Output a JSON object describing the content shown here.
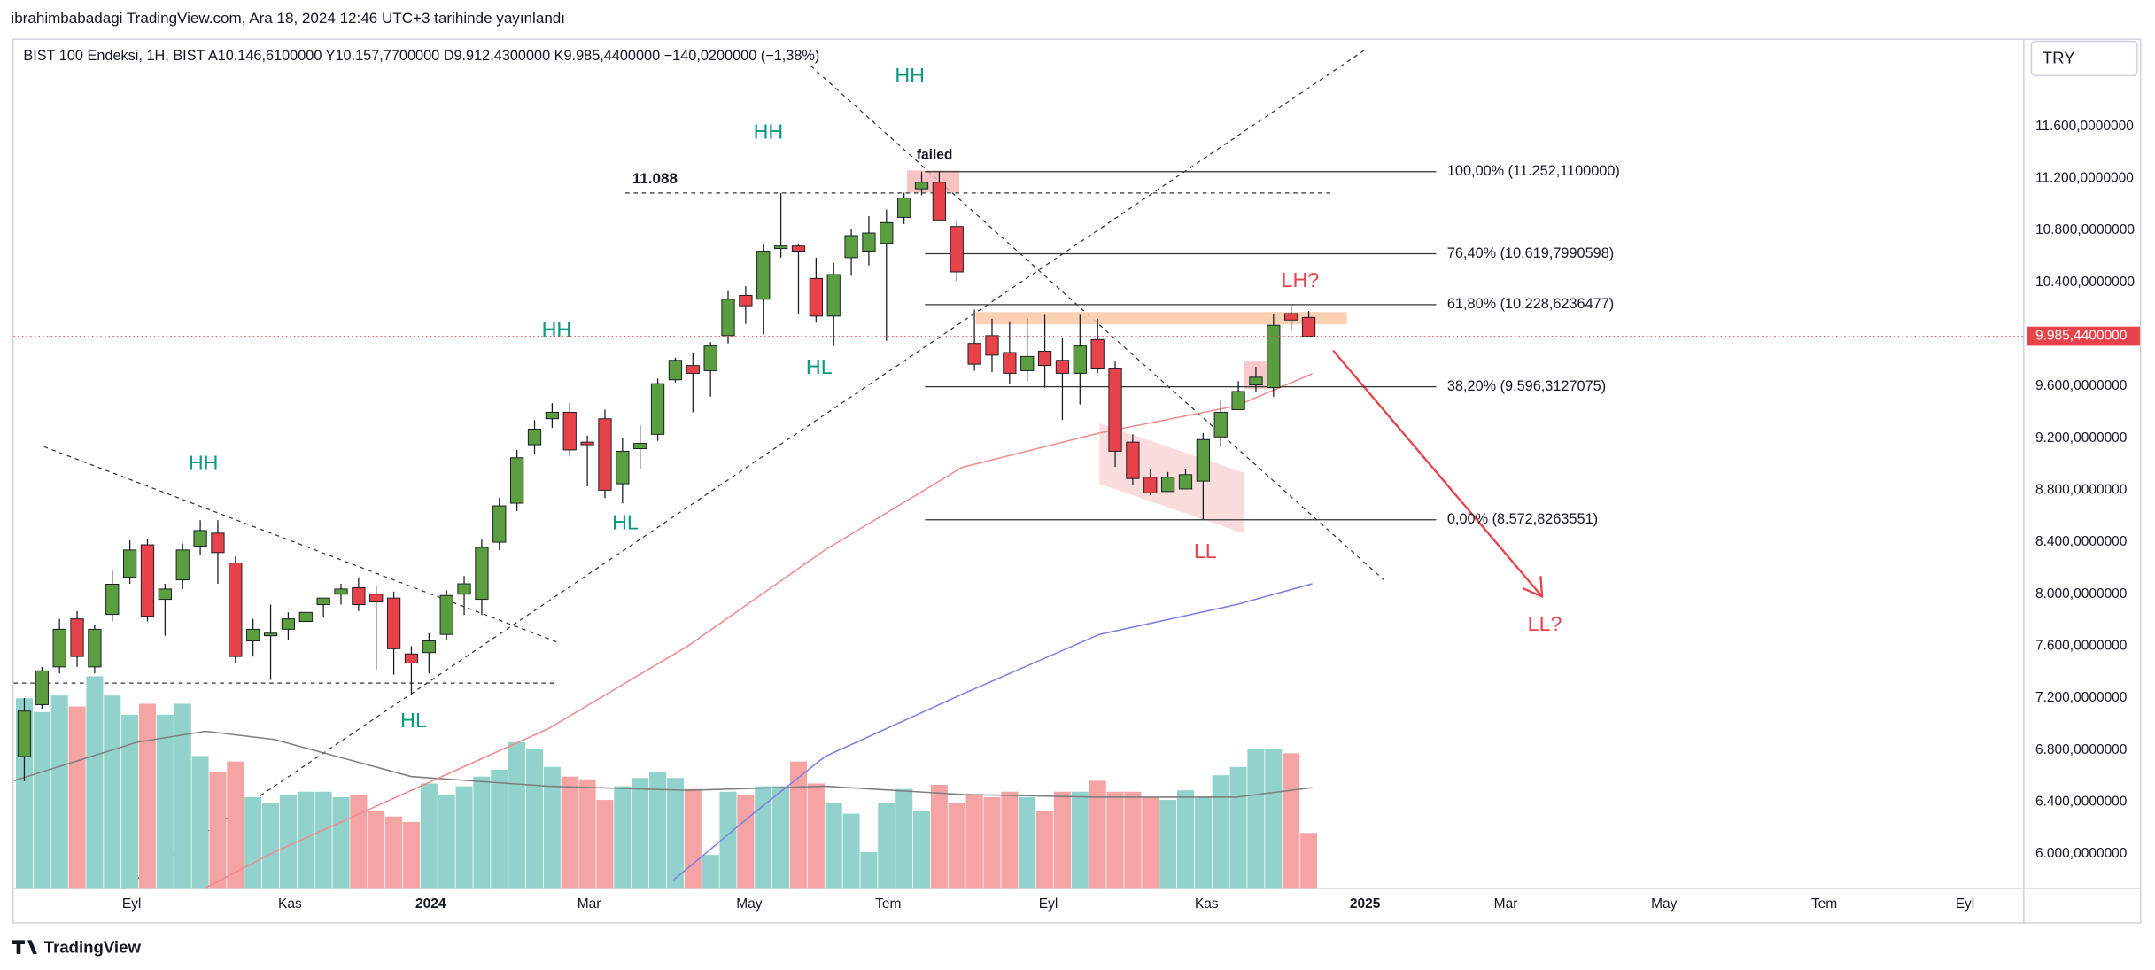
{
  "chart_data": {
    "type": "candlestick",
    "header": "ibrahimbabadagi TradingView.com, Ara 18, 2024 12:46 UTC+3 tarihinde yayınlandı",
    "legend": "BIST 100 Endeksi, 1H, BIST  A10.146,6100000  Y10.157,7700000  D9.912,4300000  K9.985,4400000  −140,0200000 (−1,38%)",
    "currency": "TRY",
    "footer": "TradingView",
    "up_color": "#5a9e3f",
    "down_color": "#e8434a",
    "volume_up_color": "#92d2cc",
    "volume_down_color": "#f5a3a3",
    "last_price": {
      "value": 9985.44,
      "label": "9.985,4400000"
    },
    "ylim": [
      5739,
      12277
    ],
    "yticks": [
      {
        "value": 6000,
        "label": "6.000,0000000"
      },
      {
        "value": 6400,
        "label": "6.400,0000000"
      },
      {
        "value": 6800,
        "label": "6.800,0000000"
      },
      {
        "value": 7200,
        "label": "7.200,0000000"
      },
      {
        "value": 7600,
        "label": "7.600,0000000"
      },
      {
        "value": 8000,
        "label": "8.000,0000000"
      },
      {
        "value": 8400,
        "label": "8.400,0000000"
      },
      {
        "value": 8800,
        "label": "8.800,0000000"
      },
      {
        "value": 9200,
        "label": "9.200,0000000"
      },
      {
        "value": 9600,
        "label": "9.600,0000000"
      },
      {
        "value": 10400,
        "label": "10.400,0000000"
      },
      {
        "value": 10800,
        "label": "10.800,0000000"
      },
      {
        "value": 11200,
        "label": "11.200,0000000"
      },
      {
        "value": 11600,
        "label": "11.600,0000000"
      }
    ],
    "xlim": [
      -0.6,
      113.6
    ],
    "xticks": [
      {
        "value": 6.1,
        "label": "Eyl"
      },
      {
        "value": 15.1,
        "label": "Kas"
      },
      {
        "value": 23.1,
        "label": "2024"
      },
      {
        "value": 32.1,
        "label": "Mar"
      },
      {
        "value": 41.2,
        "label": "May"
      },
      {
        "value": 49.1,
        "label": "Tem"
      },
      {
        "value": 58.2,
        "label": "Eyl"
      },
      {
        "value": 67.2,
        "label": "Kas"
      },
      {
        "value": 76.2,
        "label": "2025"
      },
      {
        "value": 84.2,
        "label": "Mar"
      },
      {
        "value": 93.2,
        "label": "May"
      },
      {
        "value": 102.3,
        "label": "Tem"
      },
      {
        "value": 110.3,
        "label": "Eyl"
      }
    ],
    "open": [
      6750,
      7150,
      7440,
      7810,
      7440,
      7844,
      8130,
      8380,
      7960,
      8110,
      8370,
      8470,
      8240,
      7640,
      7680,
      7730,
      7790,
      7920,
      8000,
      8050,
      8000,
      7970,
      7540,
      7550,
      7690,
      8000,
      7960,
      8400,
      8700,
      9150,
      9350,
      9400,
      9170,
      9350,
      8850,
      9120,
      9230,
      9650,
      9760,
      9720,
      9990,
      10300,
      10270,
      10660,
      10680,
      10430,
      10140,
      10590,
      10640,
      10700,
      10900,
      11120,
      11170,
      10830,
      9930,
      9990,
      9860,
      9720,
      9870,
      9800,
      9700,
      9960,
      9740,
      9170,
      8900,
      8790,
      8810,
      8870,
      9210,
      9420,
      9610,
      9590,
      10160,
      10130
    ],
    "high": [
      7200,
      7440,
      7810,
      7870,
      7760,
      8180,
      8415,
      8425,
      8080,
      8390,
      8570,
      8570,
      8290,
      7810,
      7920,
      7860,
      7860,
      7970,
      8080,
      8130,
      8060,
      8020,
      7600,
      7700,
      8030,
      8140,
      8420,
      8740,
      9110,
      9340,
      9470,
      9470,
      9220,
      9420,
      9200,
      9300,
      9660,
      9820,
      9860,
      9940,
      10340,
      10370,
      10690,
      11088,
      10700,
      10590,
      10550,
      10810,
      10910,
      10960,
      11090,
      11252,
      11252,
      10880,
      10190,
      10120,
      10100,
      10120,
      10150,
      9970,
      10150,
      10120,
      9790,
      9230,
      8960,
      8940,
      8960,
      9240,
      9490,
      9640,
      9750,
      10160,
      10228,
      10180
    ],
    "low": [
      6560,
      7120,
      7390,
      7440,
      7390,
      7790,
      8080,
      7790,
      7680,
      8040,
      8300,
      8080,
      7470,
      7520,
      7340,
      7650,
      7790,
      7820,
      7920,
      7870,
      7420,
      7380,
      7230,
      7390,
      7650,
      7840,
      7840,
      8340,
      8640,
      9080,
      9280,
      9060,
      8830,
      8740,
      8700,
      8960,
      9180,
      9630,
      9400,
      9520,
      9930,
      10080,
      10000,
      10590,
      10160,
      10090,
      9910,
      10450,
      10530,
      9950,
      10850,
      11070,
      10880,
      10410,
      9720,
      9710,
      9620,
      9640,
      9590,
      9340,
      9460,
      9700,
      8980,
      8840,
      8760,
      8800,
      8840,
      8572,
      9130,
      9420,
      9560,
      9520,
      10030,
      9990
    ],
    "close": [
      7100,
      7410,
      7730,
      7520,
      7730,
      8077,
      8340,
      7830,
      8040,
      8340,
      8490,
      8320,
      7520,
      7730,
      7700,
      7810,
      7860,
      7970,
      8040,
      7920,
      7940,
      7580,
      7470,
      7640,
      7990,
      8080,
      8360,
      8680,
      9050,
      9270,
      9400,
      9110,
      9150,
      8800,
      9100,
      9160,
      9620,
      9800,
      9700,
      9910,
      10270,
      10220,
      10640,
      10680,
      10640,
      10140,
      10460,
      10760,
      10780,
      10860,
      11050,
      11170,
      10880,
      10480,
      9770,
      9840,
      9700,
      9830,
      9760,
      9700,
      9910,
      9740,
      9100,
      8890,
      8780,
      8900,
      8920,
      9190,
      9400,
      9560,
      9670,
      10070,
      10110,
      9985.44
    ],
    "volume": [
      138,
      128,
      140,
      132,
      154,
      140,
      126,
      134,
      126,
      134,
      96,
      84,
      92,
      66,
      62,
      68,
      70,
      70,
      66,
      68,
      56,
      52,
      48,
      76,
      68,
      74,
      81,
      86,
      106,
      101,
      88,
      81,
      79,
      64,
      74,
      80,
      84,
      80,
      72,
      24,
      70,
      68,
      74,
      74,
      92,
      76,
      62,
      54,
      26,
      62,
      72,
      56,
      75,
      62,
      68,
      66,
      70,
      66,
      56,
      70,
      70,
      78,
      70,
      70,
      66,
      64,
      71,
      66,
      82,
      88,
      101,
      101,
      98,
      40
    ],
    "moving_averages": [
      {
        "color": "#f28b8b",
        "x": [
          10.3,
          14.2,
          22.0,
          29.8,
          37.7,
          45.5,
          53.3,
          61.1,
          68.9,
          73.2
        ],
        "values": [
          5740,
          6014,
          6490,
          6966,
          7600,
          8340,
          8976,
          9240,
          9450,
          9696
        ]
      },
      {
        "color": "#7b7fe0",
        "x": [
          36.9,
          41.6,
          45.5,
          53.3,
          61.1,
          68.9,
          73.2
        ],
        "values": [
          5800,
          6330,
          6750,
          7230,
          7690,
          7920,
          8080
        ]
      }
    ],
    "volume_ma": {
      "color": "#7f7f7f",
      "x": [
        -0.6,
        6.4,
        10.3,
        14.2,
        22.0,
        29.8,
        37.7,
        45.5,
        53.3,
        61.1,
        68.9,
        73.2
      ],
      "values": [
        78,
        106,
        114,
        108,
        81,
        74,
        71,
        74,
        68,
        66,
        66,
        73
      ]
    },
    "reference_level": {
      "value": 11088,
      "label": "11.088"
    },
    "fib_levels": [
      {
        "value": 11252.11,
        "label": "100,00% (11.252,1100000)"
      },
      {
        "value": 10619.7990598,
        "label": "76,40% (10.619,7990598)"
      },
      {
        "value": 10228.6236477,
        "label": "61,80% (10.228,6236477)"
      },
      {
        "value": 9596.3127075,
        "label": "38,20% (9.596,3127075)"
      },
      {
        "value": 8572.8263551,
        "label": "0,00% (8.572,8263551)"
      }
    ],
    "annotations": [
      "HH",
      "HH",
      "HH",
      "HH",
      "HL",
      "HL",
      "HL",
      "LL",
      "LH?",
      "LL?",
      "failed"
    ]
  }
}
